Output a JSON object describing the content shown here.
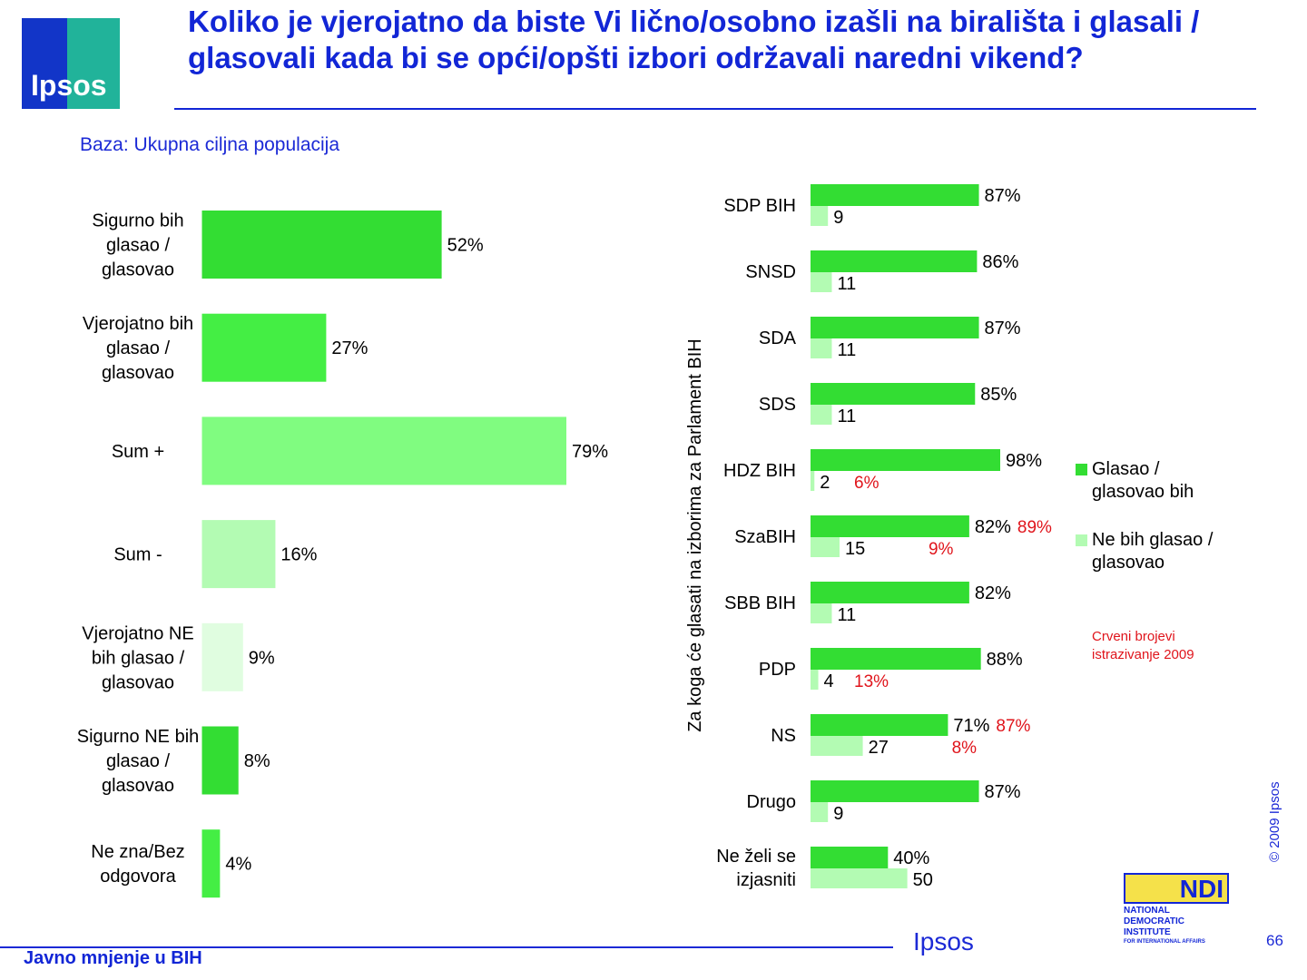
{
  "header": {
    "logo_text": "Ipsos",
    "title": "Koliko je vjerojatno da biste Vi lično/osobno izašli na birališta i glasali / glasovali kada bi se opći/opšti izbori održavali naredni vikend?",
    "base_note": "Baza: Ukupna ciljna populacija"
  },
  "colors": {
    "dark_green": "#33dd33",
    "bright_green": "#44ee44",
    "light_green": "#80fc80",
    "pale_green": "#b3fbb3",
    "very_pale_green": "#e0fde0",
    "red": "#e0141b",
    "blue": "#1226d6"
  },
  "chart_data": [
    {
      "type": "bar",
      "orientation": "horizontal",
      "categories": [
        "Sigurno bih glasao / glasovao",
        "Vjerojatno bih glasao / glasovao",
        "Sum +",
        "Sum -",
        "Vjerojatno NE bih glasao / glasovao",
        "Sigurno NE bih glasao / glasovao",
        "Ne zna/Bez odgovora"
      ],
      "category_lines": [
        [
          "Sigurno bih",
          "glasao /",
          "glasovao"
        ],
        [
          "Vjerojatno bih",
          "glasao /",
          "glasovao"
        ],
        [
          "Sum +"
        ],
        [
          "Sum -"
        ],
        [
          "Vjerojatno NE",
          "bih glasao /",
          "glasovao"
        ],
        [
          "Sigurno NE bih",
          "glasao /",
          "glasovao"
        ],
        [
          "Ne zna/Bez",
          "odgovora"
        ]
      ],
      "values": [
        52,
        27,
        79,
        16,
        9,
        8,
        4
      ],
      "labels": [
        "52%",
        "27%",
        "79%",
        "16%",
        "9%",
        "8%",
        "4%"
      ],
      "bar_colors": [
        "#33dd33",
        "#44ee44",
        "#80fc80",
        "#b3fbb3",
        "#e0fde0",
        "#33dd33",
        "#44ee44"
      ]
    },
    {
      "type": "bar",
      "orientation": "horizontal",
      "ylabel": "Za koga će glasati na izborima za Parlament BIH",
      "categories": [
        [
          "SDP BIH"
        ],
        [
          "SNSD"
        ],
        [
          "SDA"
        ],
        [
          "SDS"
        ],
        [
          "HDZ BIH"
        ],
        [
          "SzaBIH"
        ],
        [
          "SBB BIH"
        ],
        [
          "PDP"
        ],
        [
          "NS"
        ],
        [
          "Drugo"
        ],
        [
          "Ne želi se",
          "izjasniti"
        ]
      ],
      "series": [
        {
          "name": "Glasao / glasovao bih",
          "values": [
            87,
            86,
            87,
            85,
            98,
            82,
            82,
            88,
            71,
            87,
            40
          ],
          "labels": [
            "87%",
            "86%",
            "87%",
            "85%",
            "98%",
            "82%",
            "82%",
            "88%",
            "71%",
            "87%",
            "40%"
          ],
          "color": "#33dd33"
        },
        {
          "name": "Ne bih glasao / glasovao",
          "values": [
            9,
            11,
            11,
            11,
            2,
            15,
            11,
            4,
            27,
            9,
            50
          ],
          "labels": [
            "9",
            "11",
            "11",
            "11",
            "2",
            "15",
            "11",
            "4",
            "27",
            "9",
            "50"
          ],
          "color": "#b3fbb3"
        }
      ],
      "annotations_2009": [
        {
          "category": "HDZ BIH",
          "series": "Ne bih glasao / glasovao",
          "text": "6%"
        },
        {
          "category": "SzaBIH",
          "series": "Glasao / glasovao bih",
          "text": "89%"
        },
        {
          "category": "SzaBIH",
          "series": "Ne bih glasao / glasovao",
          "text": "9%"
        },
        {
          "category": "PDP",
          "series": "Ne bih glasao / glasovao",
          "text": "13%"
        },
        {
          "category": "NS",
          "series": "Glasao / glasovao bih",
          "text": "87%"
        },
        {
          "category": "NS",
          "series": "Ne bih glasao / glasovao",
          "text": "8%"
        }
      ]
    }
  ],
  "legend": {
    "item1": [
      "Glasao /",
      "glasovao bih"
    ],
    "item2": [
      "Ne bih glasao /",
      "glasovao"
    ],
    "note": "Crveni brojevi istrazivanje 2009"
  },
  "footer": {
    "left": "Javno mnjenje u BIH",
    "center_logo": "Ipsos",
    "copyright": "© 2009 Ipsos",
    "page": "66"
  },
  "ndi": {
    "mark": "NDI",
    "lines": [
      "NATIONAL",
      "DEMOCRATIC",
      "INSTITUTE",
      "FOR INTERNATIONAL AFFAIRS"
    ]
  }
}
